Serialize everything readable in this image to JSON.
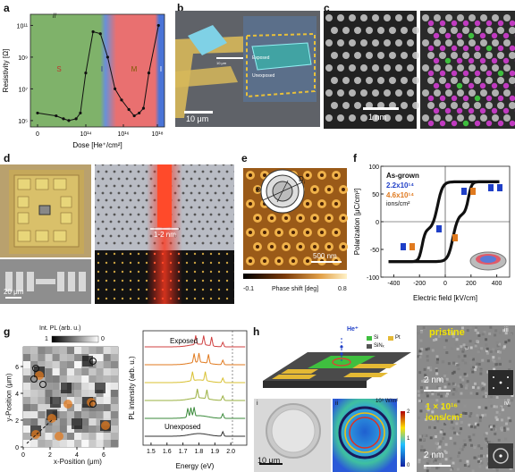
{
  "panel_letters": {
    "a": "a",
    "b": "b",
    "c": "c",
    "d": "d",
    "e": "e",
    "f": "f",
    "g": "g",
    "h": "h"
  },
  "panel_a": {
    "ylabel": "Resistivity [Ω]",
    "xlabel": "Dose [He⁺/cm²]",
    "yticks": [
      "10¹¹",
      "10⁹",
      "10⁷",
      "10⁵"
    ],
    "xticks": [
      "0",
      "10¹⁴",
      "10¹⁶",
      "10¹⁸"
    ],
    "regions": [
      "S",
      "I",
      "M",
      "I"
    ],
    "region_colors": [
      "#7fb26a",
      "#6a90d8",
      "#e97070",
      "#4a74d8"
    ]
  },
  "chart_data": [
    {
      "type": "line",
      "title": "",
      "xlabel": "Dose [He⁺/cm²]",
      "ylabel": "Resistivity [Ω]",
      "x_scale": "log (with break at 0)",
      "y_scale": "log",
      "x": [
        "0",
        "3e13",
        "6e13",
        "1e14",
        "2e14",
        "3e14",
        "5e14",
        "1e15",
        "2e15",
        "4e15",
        "8e15",
        "1.5e16",
        "3e16",
        "5e16",
        "8e16",
        "1.2e17",
        "2e17",
        "5e17"
      ],
      "y": [
        300000.0,
        200000.0,
        130000.0,
        100000.0,
        130000.0,
        300000.0,
        100000000.0,
        40000000000.0,
        30000000000.0,
        1000000000.0,
        10000000.0,
        2000000.0,
        500000.0,
        200000.0,
        300000.0,
        600000.0,
        100000000.0,
        100000000000.0
      ]
    },
    {
      "type": "line",
      "title": "",
      "xlabel": "Electric field [kV/cm]",
      "ylabel": "Polarization [μC/cm²]",
      "xticks": [
        "-400",
        "-200",
        "0",
        "200",
        "400"
      ],
      "yticks": [
        "-100",
        "-50",
        "0",
        "50",
        "100"
      ],
      "series": [
        {
          "name": "As-grown"
        },
        {
          "name": "2.2x10¹⁴"
        },
        {
          "name": "4.6x10¹⁴"
        }
      ]
    },
    {
      "type": "line",
      "title": "",
      "xlabel": "Energy (eV)",
      "ylabel": "PL intensity (arb. u.)",
      "xticks": [
        "1.5",
        "1.6",
        "1.7",
        "1.8",
        "1.9",
        "2.0"
      ],
      "series_labels": [
        "Exposed",
        "Unexposed"
      ]
    }
  ],
  "panel_b": {
    "scalebar": "10 μm",
    "inset_scale": "10 μm",
    "inset_labels": [
      "Exposed",
      "Unexposed"
    ]
  },
  "panel_c": {
    "scalebar": "1 nm"
  },
  "panel_d": {
    "scalebar_left": "20 μm",
    "scalebar_right": "1-2 nm"
  },
  "panel_e": {
    "scalebar": "500 nm",
    "colorbar_min": "-0.1",
    "colorbar_max": "0.8",
    "colorbar_label": "Phase shift [deg]",
    "inset_d": "D",
    "inset_di": "D",
    "inset_sub": "i"
  },
  "panel_f": {
    "ylabel": "Polarization [μC/cm²]",
    "xlabel": "Electric field [kV/cm]",
    "legend_title": "As-grown",
    "legend_1": "2.2x10¹⁴",
    "legend_2": "4.6x10¹⁴",
    "legend_units": "ions/cm²",
    "colors": {
      "asgrown": "#111111",
      "blue": "#1f3fc7",
      "orange": "#e07a1f"
    }
  },
  "panel_g": {
    "colorbar_label": "Int. PL (arb. u.)",
    "colorbar_max": "1",
    "colorbar_min": "0",
    "ylabel": "y-Position (μm)",
    "xlabel": "x-Position (μm)",
    "yticks": [
      "0",
      "2",
      "4",
      "6"
    ],
    "xticks": [
      "0",
      "2",
      "4",
      "6"
    ],
    "spectra_ylabel": "PL intensity (arb. u.)",
    "spectra_xlabel": "Energy (eV)",
    "label_exposed": "Exposed",
    "label_unexposed": "Unexposed"
  },
  "panel_h": {
    "ion_label": "He⁺",
    "legend": [
      "Si",
      "Pt",
      "SiNₓ"
    ],
    "legend_colors": [
      "#3fbf3f",
      "#e4b934",
      "#555555"
    ],
    "sub_i": "i",
    "sub_ii": "ii",
    "sub_iii": "iii",
    "sub_iv": "iv",
    "scalebar_i": "10 μm",
    "scalebar_iii": "2 nm",
    "scalebar_iv": "2 nm",
    "pristine": "pristine",
    "dose_iv_1": "1 × 10¹⁶",
    "dose_iv_2": "ions/cm²",
    "colorbar_unit": "10⁹ W/m²",
    "colorbar_ticks": [
      "2",
      "1",
      "0"
    ]
  }
}
